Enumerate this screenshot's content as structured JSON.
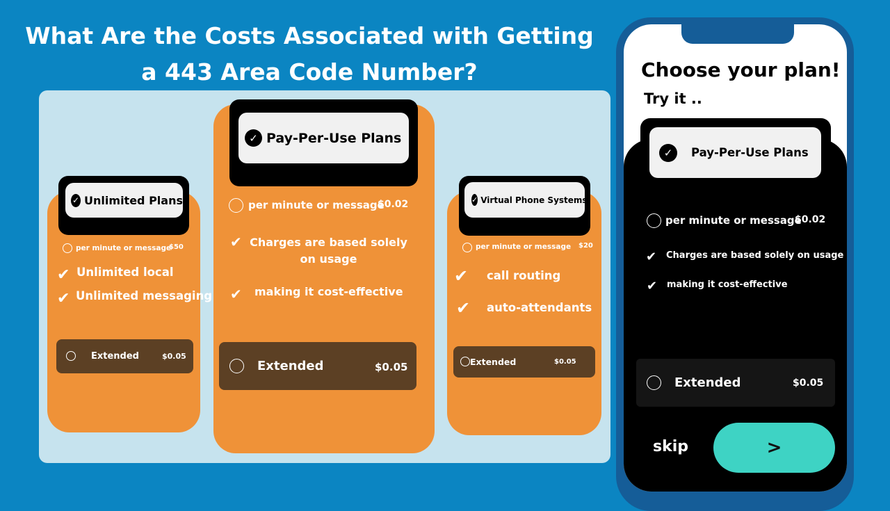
{
  "title": {
    "line1": "What Are the Costs Associated with Getting",
    "line2": "a 443 Area Code Number?"
  },
  "cards": [
    {
      "name": "Unlimited Plans",
      "rate_label": "per minute or message",
      "rate_price": "$50",
      "features": [
        "Unlimited local",
        "Unlimited messaging"
      ],
      "extended_label": "Extended",
      "extended_price": "$0.05"
    },
    {
      "name": "Pay-Per-Use Plans",
      "rate_label": "per minute or message",
      "rate_price": "$0.02",
      "features": [
        "Charges are based solely on usage",
        "making it cost-effective"
      ],
      "extended_label": "Extended",
      "extended_price": "$0.05"
    },
    {
      "name": "Virtual Phone Systems",
      "rate_label": "per minute or message",
      "rate_price": "$20",
      "features": [
        "call routing",
        "auto-attendants"
      ],
      "extended_label": "Extended",
      "extended_price": "$0.05"
    }
  ],
  "phone": {
    "heading": "Choose your plan!",
    "subheading": "Try it ..",
    "plan_name": "Pay-Per-Use Plans",
    "rate_label": "per minute or message",
    "rate_price": "$0.02",
    "features": [
      "Charges are based solely on usage",
      "making it cost-effective"
    ],
    "extended_label": "Extended",
    "extended_price": "$0.05",
    "skip_label": "skip",
    "next_label": ">"
  },
  "colors": {
    "background": "#0b85c2",
    "panel": "#c6e3ee",
    "card": "#ef9238",
    "extended": "#5c4024",
    "next_button": "#3ed3c4"
  },
  "icons": {
    "check": "check-circle-icon",
    "radio": "radio-empty-icon",
    "tick": "checkmark-icon"
  }
}
